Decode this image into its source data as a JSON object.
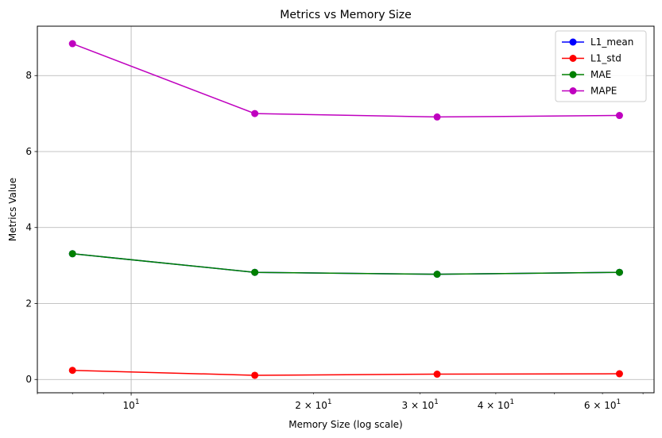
{
  "chart_data": {
    "type": "line",
    "title": "Metrics vs Memory Size",
    "xlabel": "Memory Size (log scale)",
    "ylabel": "Metrics Value",
    "x_scale": "log",
    "x": [
      8,
      16,
      32,
      64
    ],
    "xlim": [
      7.0,
      73.0
    ],
    "ylim": [
      -0.35,
      9.3
    ],
    "x_major_ticks": [
      {
        "value": 10,
        "base": "10",
        "exp": "1"
      }
    ],
    "x_minor_labeled_ticks": [
      {
        "value": 20,
        "mult": "2",
        "base": "10",
        "exp": "1"
      },
      {
        "value": 30,
        "mult": "3",
        "base": "10",
        "exp": "1"
      },
      {
        "value": 40,
        "mult": "4",
        "base": "10",
        "exp": "1"
      },
      {
        "value": 60,
        "mult": "6",
        "base": "10",
        "exp": "1"
      }
    ],
    "x_minor_unlabeled_ticks": [
      7,
      8,
      9,
      50,
      70
    ],
    "y_ticks": [
      0,
      2,
      4,
      6,
      8
    ],
    "grid": true,
    "legend_position": "top-right",
    "series": [
      {
        "name": "L1_mean",
        "color": "#0000ff",
        "values": [
          3.31,
          2.82,
          2.77,
          2.82
        ]
      },
      {
        "name": "L1_std",
        "color": "#ff0000",
        "values": [
          0.24,
          0.11,
          0.14,
          0.15
        ]
      },
      {
        "name": "MAE",
        "color": "#008000",
        "values": [
          3.31,
          2.82,
          2.77,
          2.82
        ]
      },
      {
        "name": "MAPE",
        "color": "#bf00bf",
        "values": [
          8.84,
          7.0,
          6.91,
          6.95
        ]
      }
    ]
  }
}
